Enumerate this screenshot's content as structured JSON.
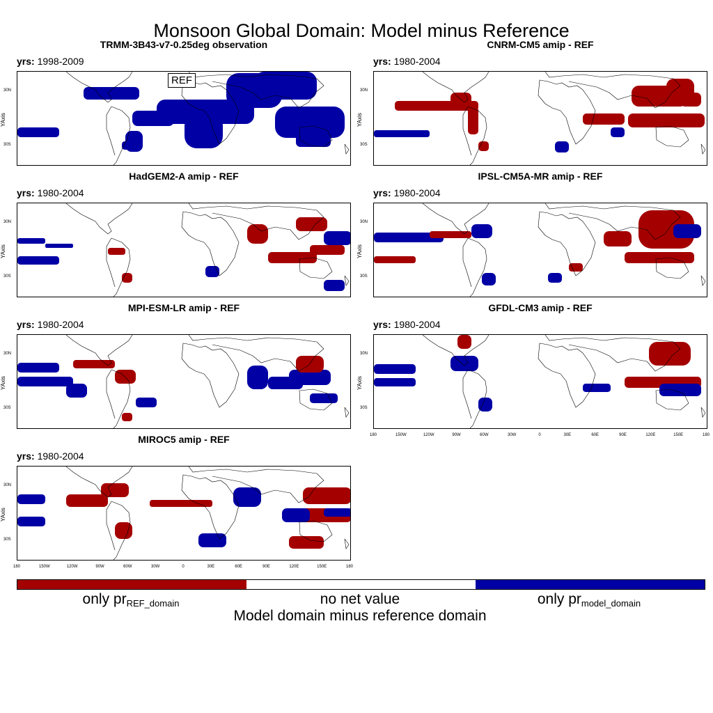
{
  "title": "Monsoon Global Domain: Model minus Reference",
  "colors": {
    "only_ref": "#a50000",
    "no_net": "#ffffff",
    "only_model": "#0000a5"
  },
  "axis": {
    "ylabel": "YAxis",
    "yticks": [
      "30N",
      "30S"
    ],
    "xticks": [
      "180",
      "150W",
      "120W",
      "90W",
      "60W",
      "30W",
      "0",
      "30E",
      "60E",
      "90E",
      "120E",
      "150E",
      "180"
    ]
  },
  "ref_label": "REF",
  "years_label": "yrs:",
  "panels": [
    {
      "title": "TRMM-3B43-v7-0.25deg observation",
      "years": "1998-2009"
    },
    {
      "title": "CNRM-CM5 amip - REF",
      "years": "1980-2004"
    },
    {
      "title": "HadGEM2-A amip - REF",
      "years": "1980-2004"
    },
    {
      "title": "IPSL-CM5A-MR amip - REF",
      "years": "1980-2004"
    },
    {
      "title": "MPI-ESM-LR amip - REF",
      "years": "1980-2004"
    },
    {
      "title": "GFDL-CM3 amip - REF",
      "years": "1980-2004"
    },
    {
      "title": "MIROC5 amip - REF",
      "years": "1980-2004"
    }
  ],
  "colorbar": {
    "title": "Model domain minus reference domain",
    "labels": [
      {
        "main": "only pr",
        "sub": "REF_domain"
      },
      {
        "main": "no net value",
        "sub": ""
      },
      {
        "main": "only pr",
        "sub": "model_domain"
      }
    ]
  },
  "chart_data": {
    "type": "heatmap",
    "title": "Monsoon Global Domain: Model minus Reference",
    "xlim": [
      "180",
      "180"
    ],
    "ylim": [
      "50S",
      "50N"
    ],
    "categories": [
      "only pr REF_domain",
      "no net value",
      "only pr model_domain"
    ],
    "panels": [
      {
        "name": "TRMM-3B43-v7-0.25deg observation",
        "years": "1998-2009",
        "shows": "reference monsoon domain"
      },
      {
        "name": "CNRM-CM5 amip - REF",
        "years": "1980-2004"
      },
      {
        "name": "HadGEM2-A amip - REF",
        "years": "1980-2004"
      },
      {
        "name": "IPSL-CM5A-MR amip - REF",
        "years": "1980-2004"
      },
      {
        "name": "MPI-ESM-LR amip - REF",
        "years": "1980-2004"
      },
      {
        "name": "GFDL-CM3 amip - REF",
        "years": "1980-2004"
      },
      {
        "name": "MIROC5 amip - REF",
        "years": "1980-2004"
      }
    ]
  }
}
